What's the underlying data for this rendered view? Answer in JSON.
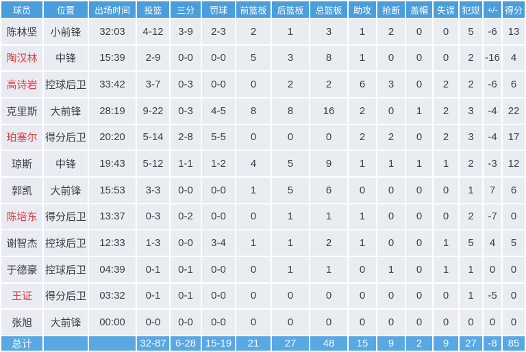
{
  "table": {
    "columns": [
      "球员",
      "位置",
      "出场时间",
      "投篮",
      "三分",
      "罚球",
      "前篮板",
      "后篮板",
      "总篮板",
      "助攻",
      "抢断",
      "盖帽",
      "失误",
      "犯规",
      "+/-",
      "得分"
    ],
    "rows": [
      {
        "name": "陈林坚",
        "name_red": false,
        "position": "小前锋",
        "time": "32:03",
        "fg": "4-12",
        "three": "3-9",
        "ft": "2-3",
        "oreb": "2",
        "dreb": "1",
        "treb": "3",
        "ast": "1",
        "stl": "2",
        "blk": "0",
        "tov": "0",
        "pf": "5",
        "pm": "-6",
        "pts": "13"
      },
      {
        "name": "陶汉林",
        "name_red": true,
        "position": "中锋",
        "time": "15:39",
        "fg": "2-9",
        "three": "0-0",
        "ft": "0-0",
        "oreb": "5",
        "dreb": "3",
        "treb": "8",
        "ast": "1",
        "stl": "0",
        "blk": "0",
        "tov": "0",
        "pf": "2",
        "pm": "-16",
        "pts": "4"
      },
      {
        "name": "高诗岩",
        "name_red": true,
        "position": "控球后卫",
        "time": "33:42",
        "fg": "3-7",
        "three": "0-3",
        "ft": "0-0",
        "oreb": "0",
        "dreb": "2",
        "treb": "2",
        "ast": "6",
        "stl": "3",
        "blk": "0",
        "tov": "2",
        "pf": "2",
        "pm": "-6",
        "pts": "6"
      },
      {
        "name": "克里斯",
        "name_red": false,
        "position": "大前锋",
        "time": "28:19",
        "fg": "9-22",
        "three": "0-3",
        "ft": "4-5",
        "oreb": "8",
        "dreb": "8",
        "treb": "16",
        "ast": "2",
        "stl": "0",
        "blk": "1",
        "tov": "2",
        "pf": "3",
        "pm": "-4",
        "pts": "22"
      },
      {
        "name": "珀塞尔",
        "name_red": true,
        "position": "得分后卫",
        "time": "20:20",
        "fg": "5-14",
        "three": "2-8",
        "ft": "5-5",
        "oreb": "0",
        "dreb": "0",
        "treb": "0",
        "ast": "2",
        "stl": "2",
        "blk": "0",
        "tov": "2",
        "pf": "3",
        "pm": "-4",
        "pts": "17"
      },
      {
        "name": "琼斯",
        "name_red": false,
        "position": "中锋",
        "time": "19:43",
        "fg": "5-12",
        "three": "1-1",
        "ft": "1-2",
        "oreb": "4",
        "dreb": "5",
        "treb": "9",
        "ast": "1",
        "stl": "1",
        "blk": "1",
        "tov": "1",
        "pf": "2",
        "pm": "-3",
        "pts": "12"
      },
      {
        "name": "郭凯",
        "name_red": false,
        "position": "大前锋",
        "time": "15:53",
        "fg": "3-3",
        "three": "0-0",
        "ft": "0-0",
        "oreb": "1",
        "dreb": "5",
        "treb": "6",
        "ast": "0",
        "stl": "0",
        "blk": "0",
        "tov": "0",
        "pf": "1",
        "pm": "7",
        "pts": "6"
      },
      {
        "name": "陈培东",
        "name_red": true,
        "position": "得分后卫",
        "time": "13:37",
        "fg": "0-3",
        "three": "0-2",
        "ft": "0-0",
        "oreb": "0",
        "dreb": "1",
        "treb": "1",
        "ast": "1",
        "stl": "0",
        "blk": "0",
        "tov": "0",
        "pf": "2",
        "pm": "-7",
        "pts": "0"
      },
      {
        "name": "谢智杰",
        "name_red": false,
        "position": "控球后卫",
        "time": "12:33",
        "fg": "1-3",
        "three": "0-0",
        "ft": "3-4",
        "oreb": "1",
        "dreb": "1",
        "treb": "2",
        "ast": "1",
        "stl": "0",
        "blk": "0",
        "tov": "1",
        "pf": "5",
        "pm": "4",
        "pts": "5"
      },
      {
        "name": "于德豪",
        "name_red": false,
        "position": "控球后卫",
        "time": "04:39",
        "fg": "0-1",
        "three": "0-1",
        "ft": "0-0",
        "oreb": "0",
        "dreb": "1",
        "treb": "1",
        "ast": "0",
        "stl": "1",
        "blk": "0",
        "tov": "1",
        "pf": "1",
        "pm": "0",
        "pts": "0"
      },
      {
        "name": "王证",
        "name_red": true,
        "position": "得分后卫",
        "time": "03:32",
        "fg": "0-1",
        "three": "0-1",
        "ft": "0-0",
        "oreb": "0",
        "dreb": "0",
        "treb": "0",
        "ast": "0",
        "stl": "0",
        "blk": "0",
        "tov": "0",
        "pf": "1",
        "pm": "-5",
        "pts": "0"
      },
      {
        "name": "张旭",
        "name_red": false,
        "position": "大前锋",
        "time": "00:00",
        "fg": "0-0",
        "three": "0-0",
        "ft": "0-0",
        "oreb": "0",
        "dreb": "0",
        "treb": "0",
        "ast": "0",
        "stl": "0",
        "blk": "0",
        "tov": "0",
        "pf": "0",
        "pm": "0",
        "pts": "0"
      }
    ],
    "total": {
      "name": "总计",
      "position": "",
      "time": "",
      "fg": "32-87",
      "three": "6-28",
      "ft": "15-19",
      "oreb": "21",
      "dreb": "27",
      "treb": "48",
      "ast": "15",
      "stl": "9",
      "blk": "2",
      "tov": "9",
      "pf": "27",
      "pm": "-8",
      "pts": "85"
    }
  },
  "colors": {
    "header_bg": "#4b9edc",
    "header_text": "#ffffff",
    "row_bg": "#e9edf1",
    "name_col_bg": "#e9eaf2",
    "total_bg": "#58a8e4",
    "total_text": "#f5fafd",
    "grid": "#ffffff",
    "text": "#3a3f47",
    "red_name": "#e23b3e"
  }
}
